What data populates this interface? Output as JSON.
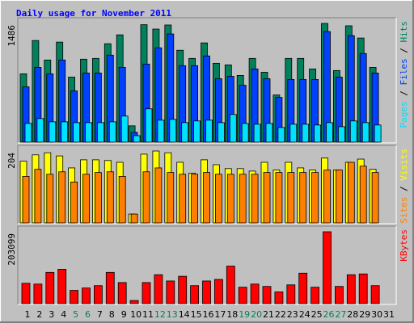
{
  "chart_data": [
    {
      "type": "bar",
      "title": "Daily usage for November 2011",
      "ylim": [
        0,
        1486
      ],
      "yticks": [
        1486
      ],
      "legend_separator": " / ",
      "series": [
        {
          "name": "Hits",
          "color": "#00805c",
          "values": [
            855,
            1272,
            1028,
            1252,
            814,
            1038,
            1048,
            1232,
            1343,
            204,
            1470,
            1415,
            1466,
            1150,
            1048,
            1242,
            987,
            967,
            835,
            1048,
            875,
            590,
            1048,
            1048,
            916,
            1486,
            896,
            1456,
            1303,
            936,
            null
          ]
        },
        {
          "name": "Files",
          "color": "#0040ff",
          "values": [
            692,
            936,
            855,
            1028,
            641,
            865,
            865,
            1089,
            936,
            122,
            977,
            1181,
            1354,
            957,
            957,
            1079,
            794,
            824,
            712,
            916,
            794,
            560,
            784,
            784,
            784,
            1384,
            814,
            1333,
            1109,
            865,
            null
          ]
        },
        {
          "name": "Pages",
          "color": "#00e0ff",
          "values": [
            234,
            295,
            254,
            254,
            244,
            244,
            244,
            254,
            326,
            81,
            417,
            275,
            285,
            244,
            265,
            275,
            244,
            346,
            234,
            224,
            234,
            183,
            224,
            224,
            214,
            244,
            193,
            265,
            244,
            214,
            null
          ]
        }
      ]
    },
    {
      "type": "bar",
      "ylim": [
        0,
        204
      ],
      "yticks": [
        204
      ],
      "legend_separator": " / ",
      "series": [
        {
          "name": "Visits",
          "color": "#ffff00",
          "values": [
            175,
            193,
            199,
            190,
            156,
            179,
            179,
            177,
            172,
            25,
            195,
            204,
            199,
            172,
            141,
            179,
            165,
            154,
            154,
            147,
            172,
            150,
            172,
            156,
            150,
            184,
            150,
            172,
            181,
            152,
            null
          ]
        },
        {
          "name": "Sites",
          "color": "#ff8000",
          "values": [
            132,
            152,
            138,
            145,
            116,
            138,
            143,
            145,
            132,
            25,
            145,
            156,
            143,
            138,
            138,
            143,
            138,
            138,
            138,
            138,
            143,
            143,
            143,
            143,
            143,
            150,
            150,
            172,
            161,
            143,
            null
          ]
        }
      ]
    },
    {
      "type": "bar",
      "ylim": [
        0,
        203099
      ],
      "yticks": [
        203099
      ],
      "categories": [
        "1",
        "2",
        "3",
        "4",
        "5",
        "6",
        "7",
        "8",
        "9",
        "10",
        "11",
        "12",
        "13",
        "14",
        "15",
        "16",
        "17",
        "18",
        "19",
        "20",
        "21",
        "22",
        "23",
        "24",
        "25",
        "26",
        "27",
        "28",
        "29",
        "30",
        "31"
      ],
      "category_colors": [
        "#000000",
        "#000000",
        "#000000",
        "#000000",
        "#00805c",
        "#00805c",
        "#000000",
        "#000000",
        "#000000",
        "#000000",
        "#000000",
        "#00805c",
        "#00805c",
        "#000000",
        "#000000",
        "#000000",
        "#000000",
        "#000000",
        "#00805c",
        "#00805c",
        "#000000",
        "#000000",
        "#000000",
        "#000000",
        "#000000",
        "#00805c",
        "#00805c",
        "#000000",
        "#000000",
        "#000000",
        "#000000"
      ],
      "series": [
        {
          "name": "KBytes",
          "color": "#ff0000",
          "values": [
            57400,
            55200,
            88300,
            97100,
            37500,
            44200,
            50800,
            88300,
            59600,
            8800,
            59600,
            81700,
            64000,
            77300,
            50800,
            64000,
            68400,
            106000,
            46400,
            55200,
            48600,
            33100,
            53000,
            86100,
            46400,
            203099,
            48600,
            81700,
            83900,
            50800,
            null
          ]
        }
      ]
    }
  ]
}
